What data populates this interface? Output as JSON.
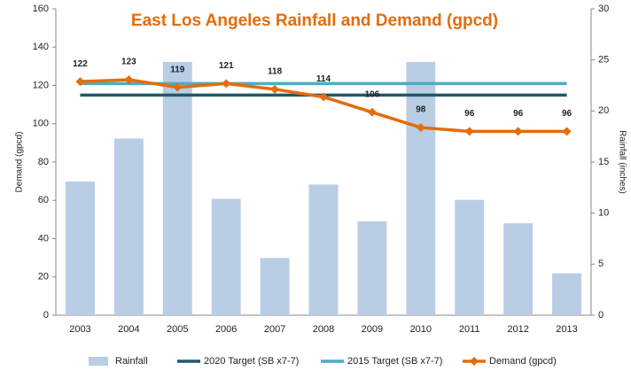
{
  "chart_data": {
    "type": "bar-line",
    "title": "East Los Angeles Rainfall and Demand (gpcd)",
    "categories": [
      "2003",
      "2004",
      "2005",
      "2006",
      "2007",
      "2008",
      "2009",
      "2010",
      "2011",
      "2012",
      "2013"
    ],
    "y_label": "Demand (gpcd)",
    "y2_label": "Rainfall (inches)",
    "ylim": [
      0,
      160
    ],
    "yticks": [
      0,
      20,
      40,
      60,
      80,
      100,
      120,
      140,
      160
    ],
    "y2lim": [
      0,
      30
    ],
    "y2ticks": [
      0,
      5,
      10,
      15,
      20,
      25,
      30
    ],
    "series": [
      {
        "name": "Rainfall",
        "type": "bar",
        "axis": "y2",
        "color": "#b9cde5",
        "values": [
          13.1,
          17.3,
          24.8,
          11.4,
          5.6,
          12.8,
          9.2,
          24.8,
          11.3,
          9.0,
          4.1
        ]
      },
      {
        "name": "2020 Target (SB x7-7)",
        "type": "line",
        "color": "#215968",
        "values": [
          115,
          115,
          115,
          115,
          115,
          115,
          115,
          115,
          115,
          115,
          115
        ]
      },
      {
        "name": "2015 Target (SB x7-7)",
        "type": "line",
        "color": "#4bacc6",
        "values": [
          121,
          121,
          121,
          121,
          121,
          121,
          121,
          121,
          121,
          121,
          121
        ]
      },
      {
        "name": "Demand (gpcd)",
        "type": "line",
        "color": "#e46c0a",
        "markers": true,
        "data_labels": true,
        "values": [
          122,
          123,
          119,
          121,
          118,
          114,
          106,
          98,
          96,
          96,
          96
        ]
      }
    ]
  }
}
